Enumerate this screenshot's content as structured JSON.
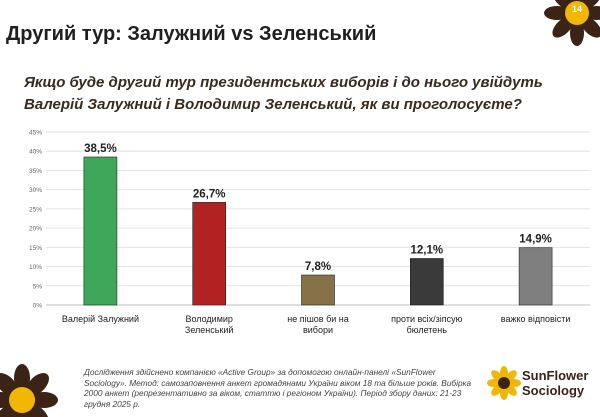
{
  "header": {
    "title": "Другий тур: Залужний vs Зеленський",
    "page_number": "14"
  },
  "question": "Якщо буде другий тур президентських виборів і до нього увійдуть Валерій Залужний і Володимир Зеленський, як ви проголосуєте?",
  "chart_data": {
    "type": "bar",
    "title": "",
    "xlabel": "",
    "ylabel": "",
    "categories": [
      "Валерій Залужний",
      "Володимир Зеленський",
      "не пішов би на вибори",
      "проти всіх/зіпсую бюлетень",
      "важко відповісти"
    ],
    "category_lines": [
      [
        "Валерій Залужний"
      ],
      [
        "Володимир",
        "Зеленський"
      ],
      [
        "не пішов би на",
        "вибори"
      ],
      [
        "проти всіх/зіпсую",
        "бюлетень"
      ],
      [
        "важко відповісти"
      ]
    ],
    "values": [
      38.5,
      26.7,
      7.8,
      12.1,
      14.9
    ],
    "value_labels": [
      "38,5%",
      "26,7%",
      "7,8%",
      "12,1%",
      "14,9%"
    ],
    "colors": [
      "#3fa75a",
      "#b22222",
      "#857347",
      "#3a3a3a",
      "#7f7f7f"
    ],
    "ylim": [
      0,
      45
    ],
    "yticks": [
      0,
      5,
      10,
      15,
      20,
      25,
      30,
      35,
      40,
      45
    ],
    "ytick_labels": [
      "0%",
      "5%",
      "10%",
      "15%",
      "20%",
      "25%",
      "30%",
      "35%",
      "40%",
      "45%"
    ],
    "grid": true
  },
  "footnote": "Дослідження здійснено компанією «Active Group» за допомогою онлайн-панелі «SunFlower Sociology». Метод: самозаповнення анкет громадянами України віком 18 та більше років. Вибірка 2000 анкет (репрезентативно за віком, статтю і регіоном України). Період збору даних: 21-23 грудня 2025 р.",
  "logo": {
    "line1": "SunFlower",
    "line2": "Sociology"
  },
  "colors": {
    "brand_brown": "#3b2415",
    "sunflower_yellow": "#f2b705"
  }
}
